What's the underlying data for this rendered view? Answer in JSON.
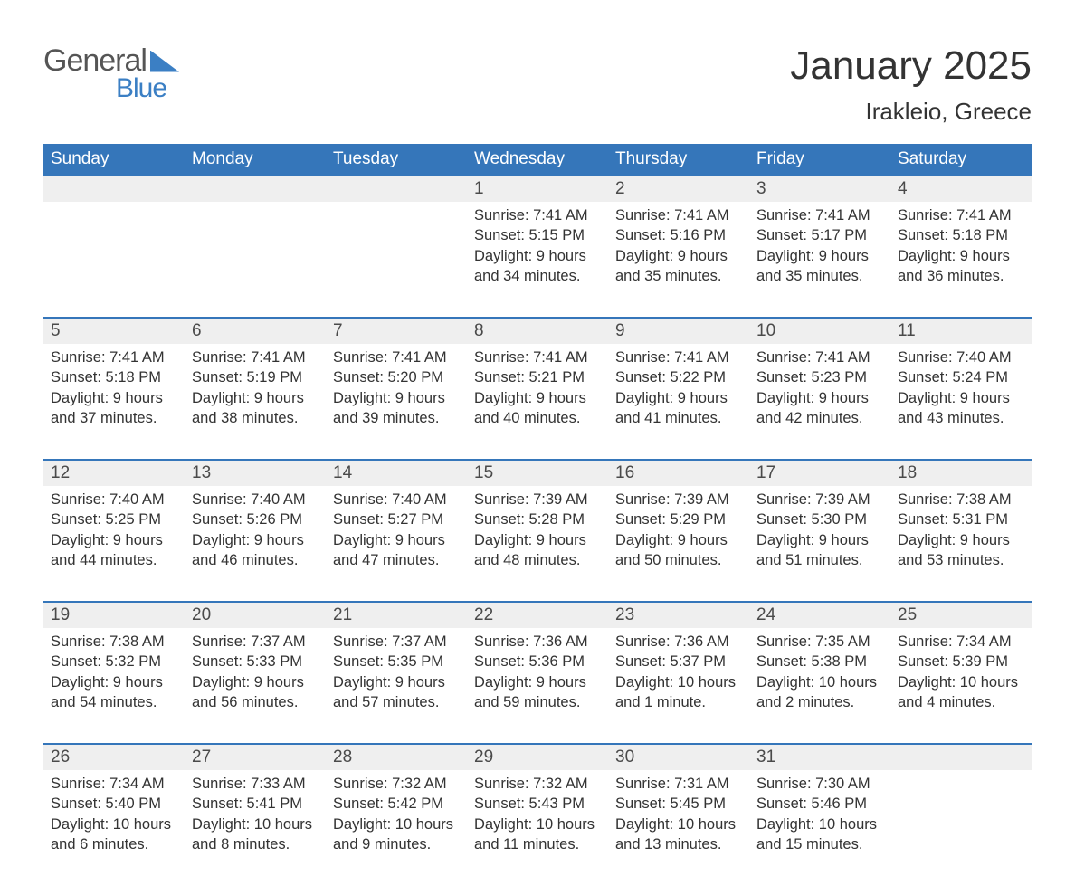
{
  "logo": {
    "general": "General",
    "blue": "Blue"
  },
  "title": "January 2025",
  "subtitle": "Irakleio, Greece",
  "colors": {
    "header_bg": "#3576ba",
    "header_text": "#ffffff",
    "daynum_bg": "#efefef",
    "border_top": "#3576ba",
    "body_text": "#333333",
    "logo_gray": "#555555",
    "logo_blue": "#3b7fc4",
    "page_bg": "#ffffff"
  },
  "weekdays": [
    "Sunday",
    "Monday",
    "Tuesday",
    "Wednesday",
    "Thursday",
    "Friday",
    "Saturday"
  ],
  "weeks": [
    [
      null,
      null,
      null,
      {
        "n": "1",
        "sunrise": "7:41 AM",
        "sunset": "5:15 PM",
        "daylight": "9 hours and 34 minutes."
      },
      {
        "n": "2",
        "sunrise": "7:41 AM",
        "sunset": "5:16 PM",
        "daylight": "9 hours and 35 minutes."
      },
      {
        "n": "3",
        "sunrise": "7:41 AM",
        "sunset": "5:17 PM",
        "daylight": "9 hours and 35 minutes."
      },
      {
        "n": "4",
        "sunrise": "7:41 AM",
        "sunset": "5:18 PM",
        "daylight": "9 hours and 36 minutes."
      }
    ],
    [
      {
        "n": "5",
        "sunrise": "7:41 AM",
        "sunset": "5:18 PM",
        "daylight": "9 hours and 37 minutes."
      },
      {
        "n": "6",
        "sunrise": "7:41 AM",
        "sunset": "5:19 PM",
        "daylight": "9 hours and 38 minutes."
      },
      {
        "n": "7",
        "sunrise": "7:41 AM",
        "sunset": "5:20 PM",
        "daylight": "9 hours and 39 minutes."
      },
      {
        "n": "8",
        "sunrise": "7:41 AM",
        "sunset": "5:21 PM",
        "daylight": "9 hours and 40 minutes."
      },
      {
        "n": "9",
        "sunrise": "7:41 AM",
        "sunset": "5:22 PM",
        "daylight": "9 hours and 41 minutes."
      },
      {
        "n": "10",
        "sunrise": "7:41 AM",
        "sunset": "5:23 PM",
        "daylight": "9 hours and 42 minutes."
      },
      {
        "n": "11",
        "sunrise": "7:40 AM",
        "sunset": "5:24 PM",
        "daylight": "9 hours and 43 minutes."
      }
    ],
    [
      {
        "n": "12",
        "sunrise": "7:40 AM",
        "sunset": "5:25 PM",
        "daylight": "9 hours and 44 minutes."
      },
      {
        "n": "13",
        "sunrise": "7:40 AM",
        "sunset": "5:26 PM",
        "daylight": "9 hours and 46 minutes."
      },
      {
        "n": "14",
        "sunrise": "7:40 AM",
        "sunset": "5:27 PM",
        "daylight": "9 hours and 47 minutes."
      },
      {
        "n": "15",
        "sunrise": "7:39 AM",
        "sunset": "5:28 PM",
        "daylight": "9 hours and 48 minutes."
      },
      {
        "n": "16",
        "sunrise": "7:39 AM",
        "sunset": "5:29 PM",
        "daylight": "9 hours and 50 minutes."
      },
      {
        "n": "17",
        "sunrise": "7:39 AM",
        "sunset": "5:30 PM",
        "daylight": "9 hours and 51 minutes."
      },
      {
        "n": "18",
        "sunrise": "7:38 AM",
        "sunset": "5:31 PM",
        "daylight": "9 hours and 53 minutes."
      }
    ],
    [
      {
        "n": "19",
        "sunrise": "7:38 AM",
        "sunset": "5:32 PM",
        "daylight": "9 hours and 54 minutes."
      },
      {
        "n": "20",
        "sunrise": "7:37 AM",
        "sunset": "5:33 PM",
        "daylight": "9 hours and 56 minutes."
      },
      {
        "n": "21",
        "sunrise": "7:37 AM",
        "sunset": "5:35 PM",
        "daylight": "9 hours and 57 minutes."
      },
      {
        "n": "22",
        "sunrise": "7:36 AM",
        "sunset": "5:36 PM",
        "daylight": "9 hours and 59 minutes."
      },
      {
        "n": "23",
        "sunrise": "7:36 AM",
        "sunset": "5:37 PM",
        "daylight": "10 hours and 1 minute."
      },
      {
        "n": "24",
        "sunrise": "7:35 AM",
        "sunset": "5:38 PM",
        "daylight": "10 hours and 2 minutes."
      },
      {
        "n": "25",
        "sunrise": "7:34 AM",
        "sunset": "5:39 PM",
        "daylight": "10 hours and 4 minutes."
      }
    ],
    [
      {
        "n": "26",
        "sunrise": "7:34 AM",
        "sunset": "5:40 PM",
        "daylight": "10 hours and 6 minutes."
      },
      {
        "n": "27",
        "sunrise": "7:33 AM",
        "sunset": "5:41 PM",
        "daylight": "10 hours and 8 minutes."
      },
      {
        "n": "28",
        "sunrise": "7:32 AM",
        "sunset": "5:42 PM",
        "daylight": "10 hours and 9 minutes."
      },
      {
        "n": "29",
        "sunrise": "7:32 AM",
        "sunset": "5:43 PM",
        "daylight": "10 hours and 11 minutes."
      },
      {
        "n": "30",
        "sunrise": "7:31 AM",
        "sunset": "5:45 PM",
        "daylight": "10 hours and 13 minutes."
      },
      {
        "n": "31",
        "sunrise": "7:30 AM",
        "sunset": "5:46 PM",
        "daylight": "10 hours and 15 minutes."
      },
      null
    ]
  ],
  "labels": {
    "sunrise": "Sunrise: ",
    "sunset": "Sunset: ",
    "daylight": "Daylight: "
  }
}
